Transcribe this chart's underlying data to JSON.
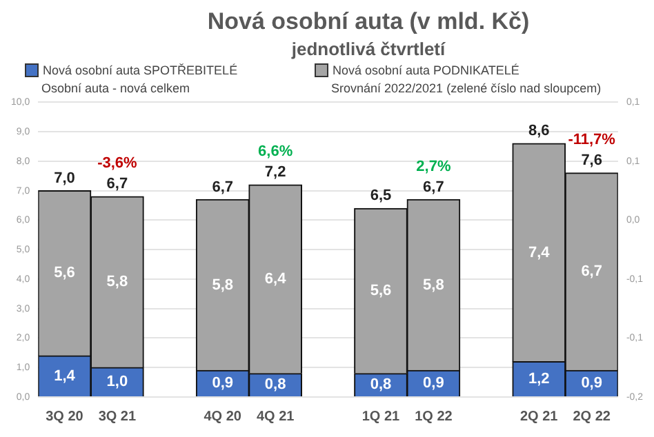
{
  "chart_data": {
    "type": "bar",
    "title": "Nová osobní auta (v mld. Kč)",
    "subtitle": "jednotlivá čtvrtletí",
    "categories": [
      "3Q 20",
      "3Q 21",
      null,
      "4Q 20",
      "4Q 21",
      null,
      "1Q 21",
      "1Q 22",
      null,
      "2Q 21",
      "2Q 22"
    ],
    "series": [
      {
        "name": "Nová osobní auta SPOTŘEBITELÉ",
        "color": "#4472c4",
        "values": [
          1.4,
          1.0,
          null,
          0.9,
          0.8,
          null,
          0.8,
          0.9,
          null,
          1.2,
          0.9
        ],
        "value_labels": [
          "1,4",
          "1,0",
          null,
          "0,9",
          "0,8",
          null,
          "0,8",
          "0,9",
          null,
          "1,2",
          "0,9"
        ]
      },
      {
        "name": "Nová osobní auta PODNIKATELÉ",
        "color": "#a5a5a5",
        "values": [
          5.6,
          5.8,
          null,
          5.8,
          6.4,
          null,
          5.6,
          5.8,
          null,
          7.4,
          6.7
        ],
        "value_labels": [
          "5,6",
          "5,8",
          null,
          "5,8",
          "6,4",
          null,
          "5,6",
          "5,8",
          null,
          "7,4",
          "6,7"
        ]
      }
    ],
    "stacked": true,
    "totals": [
      "7,0",
      "6,7",
      null,
      "6,7",
      "7,2",
      null,
      "6,5",
      "6,7",
      null,
      "8,6",
      "7,6"
    ],
    "annotations": [
      "Osobní auta - nová celkem",
      "Srovnání 2022/2021 (zelené číslo nad sloupcem)",
      {
        "text": "-3,6%",
        "x": "3Q 21",
        "y": 6.8
      },
      {
        "text": "6,6%",
        "x": "4Q 21",
        "y": 7.2
      },
      {
        "text": "2,7%",
        "x": "1Q 22",
        "y": 6.7
      },
      {
        "text": "-11,7%",
        "x": "2Q 22",
        "y": 7.6
      }
    ],
    "ylim": [
      0,
      10
    ],
    "yticks": [
      {
        "value": 0,
        "label": "0,0"
      },
      {
        "value": 1,
        "label": "1,0"
      },
      {
        "value": 2,
        "label": "2,0"
      },
      {
        "value": 3,
        "label": "3,0"
      },
      {
        "value": 4,
        "label": "4,0"
      },
      {
        "value": 5,
        "label": "5,0"
      },
      {
        "value": 6,
        "label": "6,0"
      },
      {
        "value": 7,
        "label": "7,0"
      },
      {
        "value": 8,
        "label": "8,0"
      },
      {
        "value": 9,
        "label": "9,0"
      },
      {
        "value": 10,
        "label": "10,0"
      }
    ],
    "y2lim": [
      -0.15,
      0.1
    ],
    "y2ticks": [
      {
        "value": -0.15,
        "label": "-0,2"
      },
      {
        "value": -0.1,
        "label": "-0,1"
      },
      {
        "value": -0.05,
        "label": "-0,1"
      },
      {
        "value": 0,
        "label": "0,0"
      },
      {
        "value": 0.05,
        "label": "0,1"
      },
      {
        "value": 0.1,
        "label": "0,1"
      }
    ],
    "grid": "y",
    "legend": "top"
  }
}
